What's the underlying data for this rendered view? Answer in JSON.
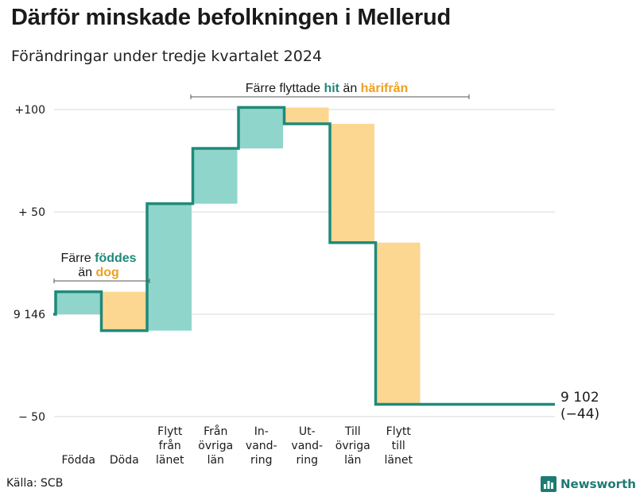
{
  "title": "Därför minskade befolkningen i Mellerud",
  "subtitle": "Förändringar under tredje kvartalet 2024",
  "source": "Källa: SCB",
  "brand": {
    "name": "Newsworthy",
    "icon": "bar-chart-icon"
  },
  "colors": {
    "increase": "#8fd5cc",
    "decrease": "#fcd791",
    "line": "#1f8a7a",
    "teal_text": "#1f8a7a",
    "orange_text": "#f0a020"
  },
  "annotations": {
    "births": {
      "line1_prefix": "Färre ",
      "line1_highlight": "föddes",
      "line2_prefix": "än ",
      "line2_highlight": "dog"
    },
    "migration": {
      "prefix": "Färre flyttade ",
      "highlight1": "hit",
      "middle": " än ",
      "highlight2": "härifrån"
    }
  },
  "end_label": {
    "value": "9 102",
    "change": "(−44)"
  },
  "chart_data": {
    "type": "waterfall",
    "title": "Därför minskade befolkningen i Mellerud",
    "subtitle": "Förändringar under tredje kvartalet 2024",
    "start_value": 9146,
    "end_value": 9102,
    "net_change": -44,
    "y_tick_labels": [
      "+100",
      "+ 50",
      "9 146",
      "−  50"
    ],
    "y_ticks": [
      100,
      50,
      0,
      -50
    ],
    "ylim": [
      -50,
      100
    ],
    "grid": true,
    "steps": [
      {
        "label": [
          "Födda"
        ],
        "change": 11
      },
      {
        "label": [
          "Döda"
        ],
        "change": -19
      },
      {
        "label": [
          "Flytt",
          "från",
          "länet"
        ],
        "change": 62
      },
      {
        "label": [
          "Från",
          "övriga",
          "län"
        ],
        "change": 27
      },
      {
        "label": [
          "In-",
          "vand-",
          "ring"
        ],
        "change": 20
      },
      {
        "label": [
          "Ut-",
          "vand-",
          "ring"
        ],
        "change": -8
      },
      {
        "label": [
          "Till",
          "övriga",
          "län"
        ],
        "change": -58
      },
      {
        "label": [
          "Flytt",
          "till",
          "länet"
        ],
        "change": -79
      }
    ]
  }
}
